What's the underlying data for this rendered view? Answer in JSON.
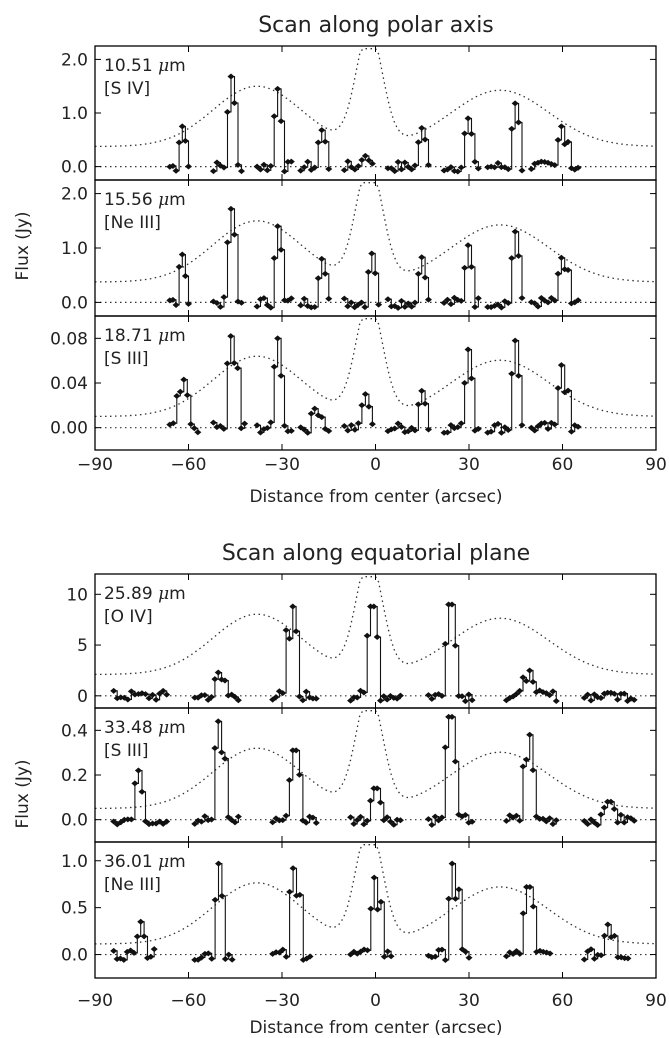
{
  "chart_data": [
    {
      "type": "line",
      "title": "Scan along polar axis",
      "xlabel": "Distance from center (arcsec)",
      "ylabel": "Flux (Jy)",
      "xlim": [
        -90,
        90
      ],
      "xticks": [
        -90,
        -60,
        -30,
        0,
        30,
        60,
        90
      ],
      "x_tick_labels": [
        "−90",
        "−60",
        "−30",
        "0",
        "30",
        "60",
        "90"
      ],
      "reference_line": "dotted, scaled brightness profile",
      "panels": [
        {
          "wavelength": "10.51 μm",
          "line": "[S IV]",
          "ylim": [
            -0.25,
            2.25
          ],
          "yticks": [
            0.0,
            1.0,
            2.0
          ],
          "y_tick_labels": [
            "0.0",
            "1.0",
            "2.0"
          ],
          "blocks": [
            {
              "x_start": -66,
              "x_end": -60,
              "peak_at": -62,
              "peak": 0.75
            },
            {
              "x_start": -52,
              "x_end": -43,
              "peak_at": -46,
              "peak": 1.68
            },
            {
              "x_start": -38,
              "x_end": -27,
              "peak_at": -31,
              "peak": 1.45
            },
            {
              "x_start": -24,
              "x_end": -15,
              "peak_at": -17,
              "peak": 0.68
            },
            {
              "x_start": -10,
              "x_end": -1,
              "peak_at": -3,
              "peak": 0.2
            },
            {
              "x_start": 4,
              "x_end": 17,
              "peak_at": 15,
              "peak": 0.72
            },
            {
              "x_start": 22,
              "x_end": 33,
              "peak_at": 30,
              "peak": 0.9
            },
            {
              "x_start": 36,
              "x_end": 47,
              "peak_at": 45,
              "peak": 1.18
            },
            {
              "x_start": 50,
              "x_end": 65,
              "peak_at": 60,
              "peak": 0.75
            }
          ]
        },
        {
          "wavelength": "15.56 μm",
          "line": "[Ne III]",
          "ylim": [
            -0.25,
            2.25
          ],
          "yticks": [
            0.0,
            1.0,
            2.0
          ],
          "y_tick_labels": [
            "0.0",
            "1.0",
            "2.0"
          ],
          "blocks": [
            {
              "x_start": -66,
              "x_end": -60,
              "peak_at": -62,
              "peak": 0.88
            },
            {
              "x_start": -52,
              "x_end": -43,
              "peak_at": -46,
              "peak": 1.72
            },
            {
              "x_start": -38,
              "x_end": -27,
              "peak_at": -31,
              "peak": 1.4
            },
            {
              "x_start": -24,
              "x_end": -15,
              "peak_at": -17,
              "peak": 0.8
            },
            {
              "x_start": -10,
              "x_end": 1,
              "peak_at": -1,
              "peak": 0.9
            },
            {
              "x_start": 4,
              "x_end": 17,
              "peak_at": 15,
              "peak": 0.83
            },
            {
              "x_start": 22,
              "x_end": 33,
              "peak_at": 30,
              "peak": 1.05
            },
            {
              "x_start": 36,
              "x_end": 47,
              "peak_at": 45,
              "peak": 1.3
            },
            {
              "x_start": 50,
              "x_end": 65,
              "peak_at": 60,
              "peak": 0.82
            }
          ]
        },
        {
          "wavelength": "18.71 μm",
          "line": "[S III]",
          "ylim": [
            -0.02,
            0.1
          ],
          "yticks": [
            0.0,
            0.04,
            0.08
          ],
          "y_tick_labels": [
            "0.00",
            "0.04",
            "0.08"
          ],
          "blocks": [
            {
              "x_start": -66,
              "x_end": -57,
              "peak_at": -62,
              "peak": 0.043
            },
            {
              "x_start": -52,
              "x_end": -42,
              "peak_at": -46,
              "peak": 0.082
            },
            {
              "x_start": -38,
              "x_end": -27,
              "peak_at": -31,
              "peak": 0.08
            },
            {
              "x_start": -24,
              "x_end": -15,
              "peak_at": -19,
              "peak": 0.017
            },
            {
              "x_start": -10,
              "x_end": -1,
              "peak_at": -3,
              "peak": 0.03
            },
            {
              "x_start": 4,
              "x_end": 17,
              "peak_at": 15,
              "peak": 0.033
            },
            {
              "x_start": 22,
              "x_end": 33,
              "peak_at": 30,
              "peak": 0.07
            },
            {
              "x_start": 36,
              "x_end": 47,
              "peak_at": 45,
              "peak": 0.078
            },
            {
              "x_start": 50,
              "x_end": 65,
              "peak_at": 60,
              "peak": 0.056
            }
          ]
        }
      ]
    },
    {
      "type": "line",
      "title": "Scan along equatorial plane",
      "xlabel": "Distance from center (arcsec)",
      "ylabel": "Flux (Jy)",
      "xlim": [
        -90,
        90
      ],
      "xticks": [
        -90,
        -60,
        -30,
        0,
        30,
        60,
        90
      ],
      "x_tick_labels": [
        "−90",
        "−60",
        "−30",
        "0",
        "30",
        "60",
        "90"
      ],
      "reference_line": "dotted, scaled brightness profile",
      "panels": [
        {
          "wavelength": "25.89 μm",
          "line": "[O IV]",
          "ylim": [
            -1.2,
            12.0
          ],
          "yticks": [
            0,
            5,
            10
          ],
          "y_tick_labels": [
            "0",
            "5",
            "10"
          ],
          "blocks": [
            {
              "x_start": -84,
              "x_end": -67,
              "peak_at": -75,
              "peak": 0.25
            },
            {
              "x_start": -58,
              "x_end": -44,
              "peak_at": -50,
              "peak": 2.3
            },
            {
              "x_start": -33,
              "x_end": -19,
              "peak_at": -27,
              "peak": 8.8
            },
            {
              "x_start": -8,
              "x_end": 8,
              "peak_at": -1,
              "peak": 8.8
            },
            {
              "x_start": 17,
              "x_end": 31,
              "peak_at": 24,
              "peak": 9.0
            },
            {
              "x_start": 42,
              "x_end": 58,
              "peak_at": 49,
              "peak": 2.5
            },
            {
              "x_start": 67,
              "x_end": 83,
              "peak_at": 75,
              "peak": 0.3
            }
          ]
        },
        {
          "wavelength": "33.48 μm",
          "line": "[S III]",
          "ylim": [
            -0.1,
            0.5
          ],
          "yticks": [
            0.0,
            0.2,
            0.4
          ],
          "y_tick_labels": [
            "0.0",
            "0.2",
            "0.4"
          ],
          "blocks": [
            {
              "x_start": -84,
              "x_end": -67,
              "peak_at": -76,
              "peak": 0.22
            },
            {
              "x_start": -58,
              "x_end": -44,
              "peak_at": -50,
              "peak": 0.44
            },
            {
              "x_start": -33,
              "x_end": -19,
              "peak_at": -26,
              "peak": 0.31
            },
            {
              "x_start": -8,
              "x_end": 8,
              "peak_at": 0,
              "peak": 0.14
            },
            {
              "x_start": 17,
              "x_end": 31,
              "peak_at": 24,
              "peak": 0.46
            },
            {
              "x_start": 42,
              "x_end": 58,
              "peak_at": 49,
              "peak": 0.38
            },
            {
              "x_start": 67,
              "x_end": 83,
              "peak_at": 75,
              "peak": 0.08
            }
          ]
        },
        {
          "wavelength": "36.01 μm",
          "line": "[Ne III]",
          "ylim": [
            -0.25,
            1.2
          ],
          "yticks": [
            0.0,
            0.5,
            1.0
          ],
          "y_tick_labels": [
            "0.0",
            "0.5",
            "1.0"
          ],
          "blocks": [
            {
              "x_start": -84,
              "x_end": -71,
              "peak_at": -75,
              "peak": 0.35
            },
            {
              "x_start": -58,
              "x_end": -46,
              "peak_at": -50,
              "peak": 0.97
            },
            {
              "x_start": -33,
              "x_end": -21,
              "peak_at": -26,
              "peak": 0.92
            },
            {
              "x_start": -8,
              "x_end": 5,
              "peak_at": 0,
              "peak": 0.82
            },
            {
              "x_start": 17,
              "x_end": 30,
              "peak_at": 25,
              "peak": 0.97
            },
            {
              "x_start": 42,
              "x_end": 56,
              "peak_at": 49,
              "peak": 0.72
            },
            {
              "x_start": 67,
              "x_end": 81,
              "peak_at": 75,
              "peak": 0.32
            }
          ]
        }
      ]
    }
  ]
}
